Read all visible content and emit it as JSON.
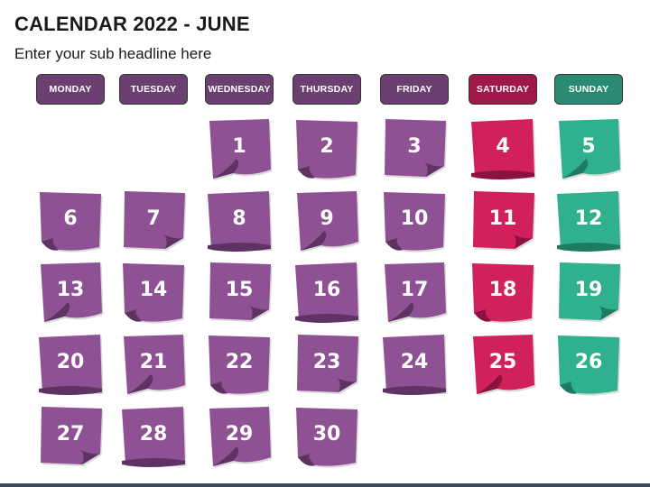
{
  "title": "CALENDAR 2022 - JUNE",
  "subtitle": "Enter your sub headline here",
  "colors": {
    "weekday": "#6b4070",
    "weekday_note": "#8e5193",
    "weekday_curl": "#5e3363",
    "saturday": "#a0174a",
    "saturday_note": "#d0215b",
    "saturday_curl": "#8a1240",
    "sunday": "#2b8a72",
    "sunday_note": "#2fb08e",
    "sunday_curl": "#1f7a62"
  },
  "weekdays": [
    "MONDAY",
    "TUESDAY",
    "WEDNESDAY",
    "THURSDAY",
    "FRIDAY",
    "SATURDAY",
    "SUNDAY"
  ],
  "weeks": [
    [
      null,
      null,
      "1",
      "2",
      "3",
      "4",
      "5"
    ],
    [
      "6",
      "7",
      "8",
      "9",
      "10",
      "11",
      "12"
    ],
    [
      "13",
      "14",
      "15",
      "16",
      "17",
      "18",
      "19"
    ],
    [
      "20",
      "21",
      "22",
      "23",
      "24",
      "25",
      "26"
    ],
    [
      "27",
      "28",
      "29",
      "30",
      null,
      null,
      null
    ]
  ]
}
